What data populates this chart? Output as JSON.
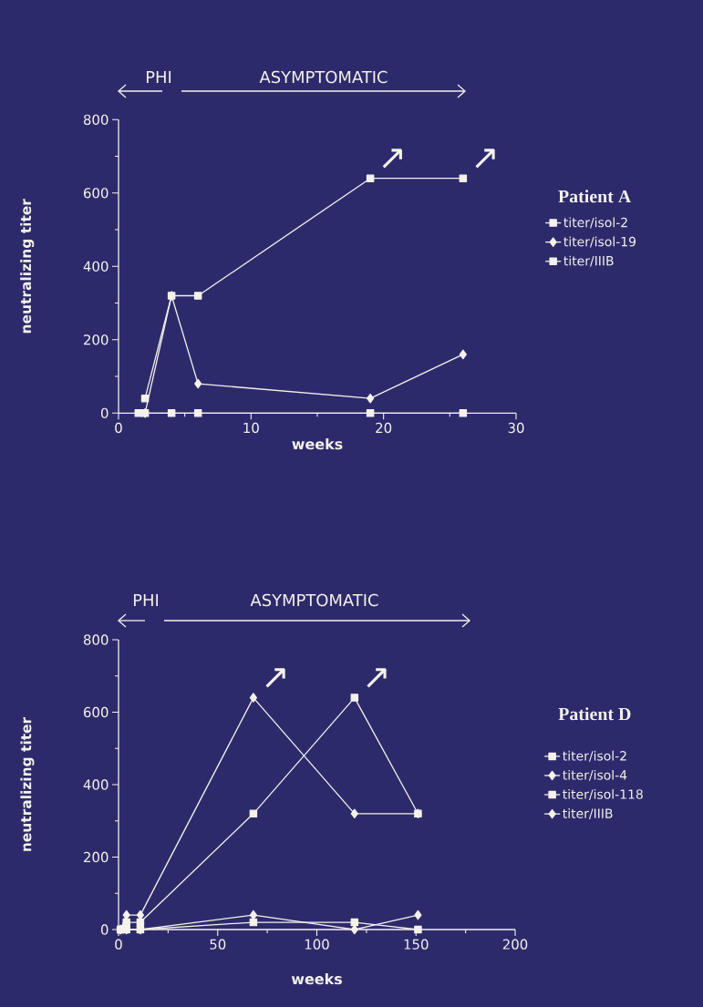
{
  "chart_data": [
    {
      "type": "line",
      "legend_title": "Patient A",
      "xlabel": "weeks",
      "ylabel": "neutralizing titer",
      "legend": "right",
      "line_style": "solid",
      "x": [
        1.5,
        2,
        4,
        6,
        19,
        26
      ],
      "series": [
        {
          "name": "titer/isol-2",
          "color": "#f4f2ea",
          "marker": "square",
          "values": [
            null,
            40,
            320,
            320,
            640,
            640
          ]
        },
        {
          "name": "titer/isol-19",
          "color": "#f4f2ea",
          "marker": "diamond",
          "values": [
            null,
            0,
            320,
            80,
            40,
            160
          ]
        },
        {
          "name": "titer/IIIB",
          "color": "#f4f2ea",
          "marker": "square",
          "values": [
            0,
            0,
            0,
            0,
            0,
            0
          ]
        }
      ],
      "xlim": [
        0,
        30
      ],
      "xticks": [
        0,
        {
          "value": 5,
          "label": null
        },
        10,
        {
          "value": 15,
          "label": null
        },
        20,
        {
          "value": 25,
          "label": null
        },
        30
      ],
      "ylim": [
        0,
        800
      ],
      "yticks": [
        0,
        {
          "value": 100,
          "label": null
        },
        200,
        {
          "value": 300,
          "label": null
        },
        400,
        {
          "value": 500,
          "label": null
        },
        600,
        {
          "value": 700,
          "label": null
        },
        800
      ],
      "annotations": [
        "PHI",
        "ASYMPTOMATIC",
        {
          "text": "↗",
          "x": 19,
          "y": 640
        },
        {
          "text": "↗",
          "x": 26,
          "y": 640
        }
      ]
    },
    {
      "type": "line",
      "legend_title": "Patient D",
      "xlabel": "weeks",
      "ylabel": "neutralizing titer",
      "legend": "right",
      "line_style": "solid",
      "x": [
        1,
        4,
        11,
        68,
        119,
        151
      ],
      "series": [
        {
          "name": "titer/isol-2",
          "color": "#f4f2ea",
          "marker": "square",
          "values": [
            0,
            20,
            20,
            320,
            640,
            320
          ]
        },
        {
          "name": "titer/isol-4",
          "color": "#f4f2ea",
          "marker": "diamond",
          "values": [
            0,
            40,
            40,
            640,
            320,
            320
          ]
        },
        {
          "name": "titer/isol-118",
          "color": "#f4f2ea",
          "marker": "square",
          "values": [
            0,
            0,
            0,
            20,
            20,
            0
          ]
        },
        {
          "name": "titer/IIIB",
          "color": "#f4f2ea",
          "marker": "diamond",
          "values": [
            0,
            0,
            0,
            40,
            0,
            40
          ]
        }
      ],
      "xlim": [
        0,
        200
      ],
      "xticks": [
        0,
        {
          "value": 25,
          "label": null
        },
        50,
        {
          "value": 75,
          "label": null
        },
        100,
        {
          "value": 125,
          "label": null
        },
        150,
        {
          "value": 175,
          "label": null
        },
        200
      ],
      "ylim": [
        0,
        800
      ],
      "yticks": [
        0,
        {
          "value": 100,
          "label": null
        },
        200,
        {
          "value": 300,
          "label": null
        },
        400,
        {
          "value": 500,
          "label": null
        },
        600,
        {
          "value": 700,
          "label": null
        },
        800
      ],
      "annotations": [
        "PHI",
        "ASYMPTOMATIC",
        {
          "text": "↗",
          "x": 68,
          "y": 640
        },
        {
          "text": "↗",
          "x": 119,
          "y": 640
        }
      ]
    }
  ]
}
